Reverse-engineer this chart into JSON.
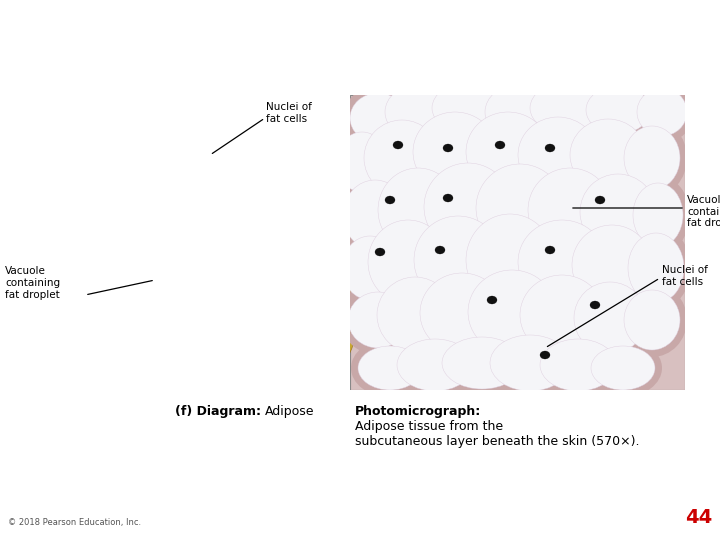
{
  "bg_color": "#ffffff",
  "page_number": "44",
  "page_number_color": "#cc0000",
  "copyright_text": "© 2018 Pearson Education, Inc.",
  "caption_left_bold": "(f) Diagram:",
  "caption_left_normal": "Adipose",
  "caption_right_bold": "Photomicrograph:",
  "caption_right_normal": "Adipose tissue from the\nsubcutaneous layer beneath the skin (570×).",
  "diagram_bg": "#f0e0a0",
  "diagram_cell_fill": "#f5eecc",
  "diagram_cell_edge": "#c8a830",
  "diagram_nucleus_color": "#2a2a2a",
  "photo_bg": "#d8c0c0",
  "photo_cell_fill": "#f5f5f8",
  "photo_interstitial": "#c8a8a8",
  "photo_nucleus_color": "#111111"
}
